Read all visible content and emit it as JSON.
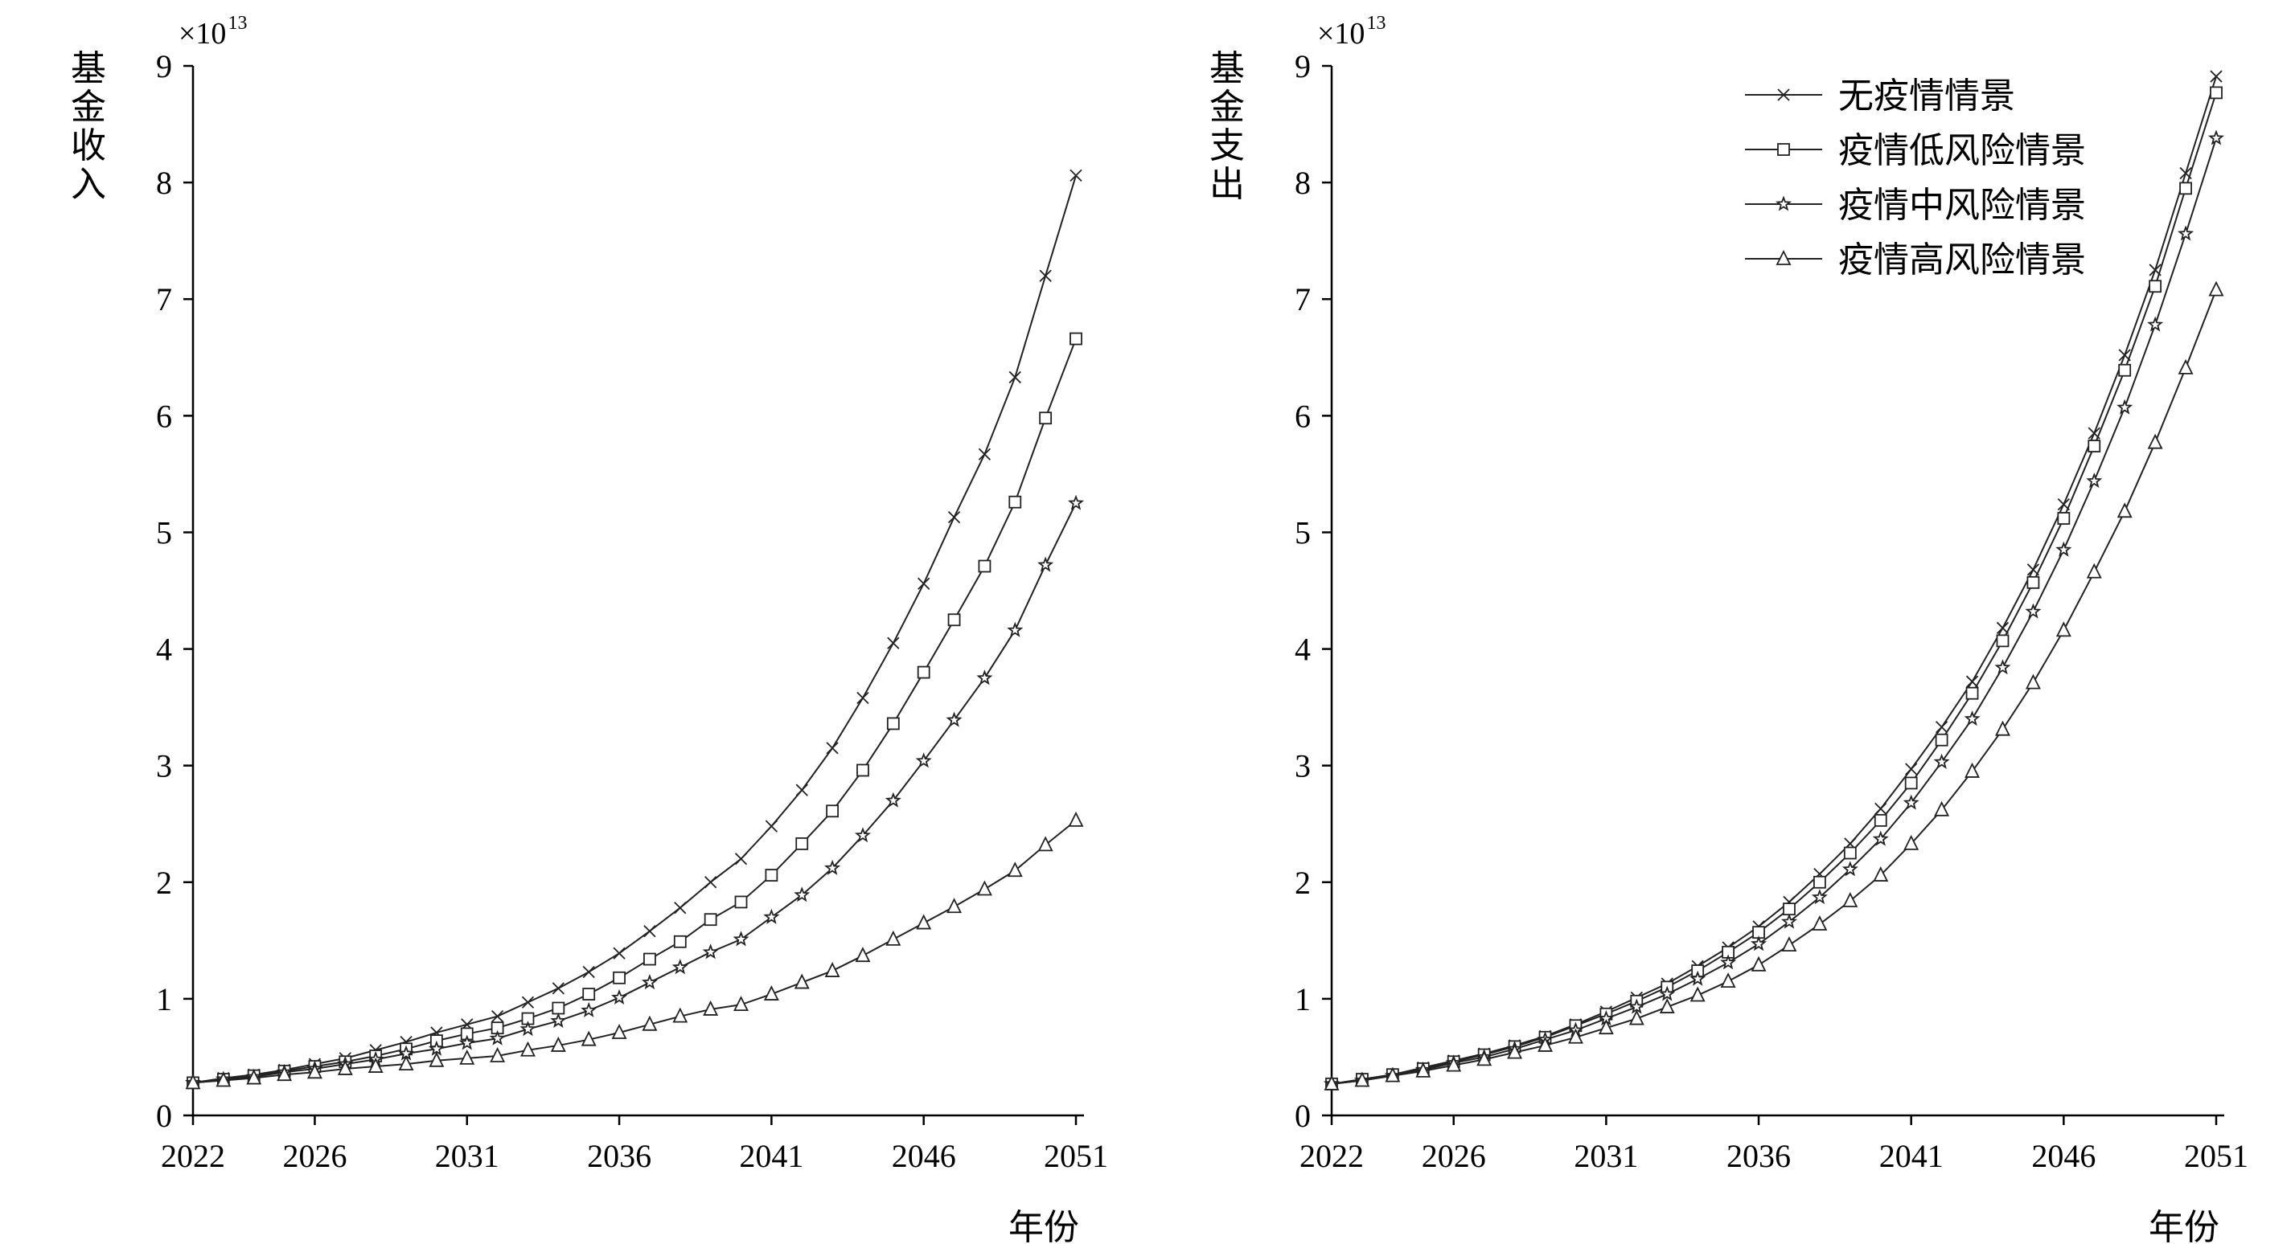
{
  "chart_data": [
    {
      "type": "line",
      "ylabel": "基金收入",
      "xlabel": "年份",
      "y_multiplier": "×10",
      "y_multiplier_exponent": "13",
      "xlim": [
        2022,
        2051
      ],
      "ylim": [
        0,
        9
      ],
      "x_ticks": [
        2022,
        2026,
        2031,
        2036,
        2041,
        2046,
        2051
      ],
      "y_ticks": [
        0,
        1,
        2,
        3,
        4,
        5,
        6,
        7,
        8,
        9
      ],
      "x": [
        2022,
        2023,
        2024,
        2025,
        2026,
        2027,
        2028,
        2029,
        2030,
        2031,
        2032,
        2033,
        2034,
        2035,
        2036,
        2037,
        2038,
        2039,
        2040,
        2041,
        2042,
        2043,
        2044,
        2045,
        2046,
        2047,
        2048,
        2049,
        2050,
        2051
      ],
      "series": [
        {
          "name": "无疫情情景",
          "marker": "x",
          "values": [
            0.28,
            0.32,
            0.35,
            0.39,
            0.44,
            0.49,
            0.56,
            0.63,
            0.71,
            0.78,
            0.85,
            0.97,
            1.09,
            1.23,
            1.39,
            1.58,
            1.78,
            2.0,
            2.2,
            2.48,
            2.79,
            3.15,
            3.58,
            4.05,
            4.56,
            5.13,
            5.67,
            6.33,
            7.2,
            8.06
          ]
        },
        {
          "name": "疫情低风险情景",
          "marker": "square",
          "values": [
            0.28,
            0.31,
            0.34,
            0.38,
            0.42,
            0.46,
            0.51,
            0.57,
            0.64,
            0.7,
            0.75,
            0.83,
            0.92,
            1.04,
            1.18,
            1.34,
            1.49,
            1.68,
            1.83,
            2.06,
            2.33,
            2.61,
            2.96,
            3.36,
            3.8,
            4.25,
            4.71,
            5.26,
            5.98,
            6.66
          ]
        },
        {
          "name": "疫情中风险情景",
          "marker": "star",
          "values": [
            0.28,
            0.31,
            0.33,
            0.37,
            0.4,
            0.44,
            0.48,
            0.53,
            0.57,
            0.62,
            0.66,
            0.74,
            0.81,
            0.9,
            1.01,
            1.14,
            1.27,
            1.4,
            1.51,
            1.7,
            1.89,
            2.12,
            2.4,
            2.7,
            3.04,
            3.39,
            3.75,
            4.16,
            4.72,
            5.25
          ]
        },
        {
          "name": "疫情高风险情景",
          "marker": "triangle",
          "values": [
            0.28,
            0.3,
            0.32,
            0.35,
            0.37,
            0.4,
            0.42,
            0.44,
            0.47,
            0.49,
            0.51,
            0.56,
            0.6,
            0.65,
            0.71,
            0.78,
            0.85,
            0.91,
            0.95,
            1.04,
            1.14,
            1.24,
            1.37,
            1.51,
            1.65,
            1.79,
            1.94,
            2.1,
            2.32,
            2.53
          ]
        }
      ]
    },
    {
      "type": "line",
      "ylabel": "基金支出",
      "xlabel": "年份",
      "y_multiplier": "×10",
      "y_multiplier_exponent": "13",
      "xlim": [
        2022,
        2051
      ],
      "ylim": [
        0,
        9
      ],
      "x_ticks": [
        2022,
        2026,
        2031,
        2036,
        2041,
        2046,
        2051
      ],
      "y_ticks": [
        0,
        1,
        2,
        3,
        4,
        5,
        6,
        7,
        8,
        9
      ],
      "legend": "top-right",
      "x": [
        2022,
        2023,
        2024,
        2025,
        2026,
        2027,
        2028,
        2029,
        2030,
        2031,
        2032,
        2033,
        2034,
        2035,
        2036,
        2037,
        2038,
        2039,
        2040,
        2041,
        2042,
        2043,
        2044,
        2045,
        2046,
        2047,
        2048,
        2049,
        2050,
        2051
      ],
      "series": [
        {
          "name": "无疫情情景",
          "marker": "x",
          "values": [
            0.27,
            0.31,
            0.35,
            0.41,
            0.47,
            0.53,
            0.6,
            0.68,
            0.78,
            0.89,
            1.01,
            1.13,
            1.28,
            1.44,
            1.62,
            1.83,
            2.07,
            2.33,
            2.63,
            2.97,
            3.33,
            3.72,
            4.18,
            4.68,
            5.24,
            5.85,
            6.52,
            7.25,
            8.08,
            8.91
          ]
        },
        {
          "name": "疫情低风险情景",
          "marker": "square",
          "values": [
            0.27,
            0.31,
            0.35,
            0.4,
            0.46,
            0.52,
            0.59,
            0.67,
            0.77,
            0.87,
            0.98,
            1.1,
            1.24,
            1.4,
            1.57,
            1.77,
            2.0,
            2.25,
            2.53,
            2.85,
            3.22,
            3.62,
            4.07,
            4.57,
            5.12,
            5.74,
            6.39,
            7.11,
            7.95,
            8.77
          ]
        },
        {
          "name": "疫情中风险情景",
          "marker": "star",
          "values": [
            0.27,
            0.3,
            0.34,
            0.39,
            0.45,
            0.5,
            0.57,
            0.65,
            0.73,
            0.83,
            0.93,
            1.04,
            1.17,
            1.31,
            1.47,
            1.66,
            1.87,
            2.11,
            2.37,
            2.68,
            3.03,
            3.4,
            3.84,
            4.32,
            4.85,
            5.44,
            6.07,
            6.78,
            7.56,
            8.38
          ]
        },
        {
          "name": "疫情高风险情景",
          "marker": "triangle",
          "values": [
            0.27,
            0.3,
            0.34,
            0.38,
            0.43,
            0.48,
            0.54,
            0.6,
            0.67,
            0.75,
            0.83,
            0.93,
            1.03,
            1.15,
            1.29,
            1.46,
            1.64,
            1.84,
            2.06,
            2.33,
            2.62,
            2.95,
            3.31,
            3.71,
            4.16,
            4.66,
            5.18,
            5.77,
            6.41,
            7.08
          ]
        }
      ]
    }
  ]
}
